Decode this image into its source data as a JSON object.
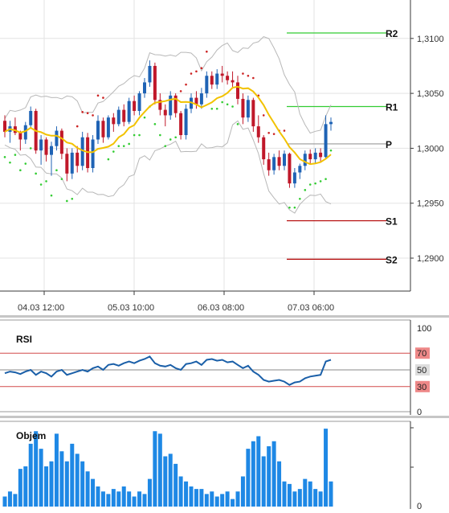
{
  "chart_data": [
    {
      "type": "candlestick",
      "pane": "price",
      "x_labels": [
        "04.03 12:00",
        "05.03 10:00",
        "06.03 08:00",
        "07.03 06:00"
      ],
      "y_ticks": [
        "1,3100",
        "1,3050",
        "1,3000",
        "1,2950",
        "1,2900"
      ],
      "ylim": [
        1.287,
        1.3135
      ],
      "pivot_levels": [
        {
          "label": "R2",
          "value": 1.3105,
          "color": "#33cc33"
        },
        {
          "label": "R1",
          "value": 1.3038,
          "color": "#33cc33"
        },
        {
          "label": "P",
          "value": 1.3004,
          "color": "#999999"
        },
        {
          "label": "S1",
          "value": 1.2934,
          "color": "#b30000"
        },
        {
          "label": "S2",
          "value": 1.2899,
          "color": "#b30000"
        }
      ],
      "candles": [
        [
          1.3025,
          1.303,
          1.301,
          1.3015
        ],
        [
          1.3015,
          1.3025,
          1.3005,
          1.302
        ],
        [
          1.302,
          1.3028,
          1.3012,
          1.3014
        ],
        [
          1.3014,
          1.3016,
          1.2998,
          1.3008
        ],
        [
          1.3008,
          1.3024,
          1.3004,
          1.3021
        ],
        [
          1.3021,
          1.3038,
          1.3018,
          1.3034
        ],
        [
          1.3034,
          1.3036,
          1.2995,
          1.2998
        ],
        [
          1.2998,
          1.3012,
          1.2985,
          1.3008
        ],
        [
          1.3008,
          1.301,
          1.2988,
          1.2994
        ],
        [
          1.2994,
          1.3006,
          1.2975,
          1.3002
        ],
        [
          1.3002,
          1.302,
          1.2998,
          1.3016
        ],
        [
          1.3016,
          1.3018,
          1.299,
          1.2995
        ],
        [
          1.2995,
          1.3,
          1.297,
          1.2977
        ],
        [
          1.2977,
          1.3,
          1.2972,
          1.2996
        ],
        [
          1.2996,
          1.3002,
          1.2978,
          1.2984
        ],
        [
          1.2984,
          1.3015,
          1.298,
          1.301
        ],
        [
          1.301,
          1.3014,
          1.2978,
          1.2982
        ],
        [
          1.2982,
          1.3012,
          1.2978,
          1.3008
        ],
        [
          1.3008,
          1.303,
          1.3004,
          1.3025
        ],
        [
          1.3025,
          1.3028,
          1.3005,
          1.301
        ],
        [
          1.301,
          1.303,
          1.3008,
          1.3028
        ],
        [
          1.3028,
          1.3032,
          1.3015,
          1.3022
        ],
        [
          1.3022,
          1.3038,
          1.302,
          1.3035
        ],
        [
          1.3035,
          1.304,
          1.302,
          1.3024
        ],
        [
          1.3024,
          1.3046,
          1.3022,
          1.3043
        ],
        [
          1.3043,
          1.3048,
          1.303,
          1.3034
        ],
        [
          1.3034,
          1.3052,
          1.303,
          1.305
        ],
        [
          1.305,
          1.3064,
          1.3046,
          1.306
        ],
        [
          1.306,
          1.308,
          1.3056,
          1.3075
        ],
        [
          1.3075,
          1.3078,
          1.304,
          1.3044
        ],
        [
          1.3044,
          1.305,
          1.303,
          1.3035
        ],
        [
          1.3035,
          1.304,
          1.302,
          1.303
        ],
        [
          1.303,
          1.3052,
          1.3026,
          1.3048
        ],
        [
          1.3048,
          1.305,
          1.3028,
          1.3032
        ],
        [
          1.3032,
          1.3034,
          1.3008,
          1.3012
        ],
        [
          1.3012,
          1.304,
          1.3008,
          1.3036
        ],
        [
          1.3036,
          1.305,
          1.3032,
          1.3046
        ],
        [
          1.3046,
          1.3052,
          1.3036,
          1.304
        ],
        [
          1.304,
          1.3055,
          1.3036,
          1.305
        ],
        [
          1.305,
          1.307,
          1.3046,
          1.3066
        ],
        [
          1.3066,
          1.307,
          1.3054,
          1.3058
        ],
        [
          1.3058,
          1.3072,
          1.3054,
          1.3068
        ],
        [
          1.3068,
          1.3075,
          1.306,
          1.3066
        ],
        [
          1.3066,
          1.307,
          1.3058,
          1.3062
        ],
        [
          1.3062,
          1.307,
          1.3056,
          1.306
        ],
        [
          1.306,
          1.3066,
          1.304,
          1.3045
        ],
        [
          1.3045,
          1.305,
          1.3022,
          1.3028
        ],
        [
          1.3028,
          1.3048,
          1.3024,
          1.3044
        ],
        [
          1.3044,
          1.3046,
          1.3015,
          1.302
        ],
        [
          1.302,
          1.303,
          1.3005,
          1.301
        ],
        [
          1.301,
          1.3012,
          1.2985,
          1.299
        ],
        [
          1.299,
          1.2996,
          1.2975,
          1.298
        ],
        [
          1.298,
          1.2995,
          1.2976,
          1.2992
        ],
        [
          1.2992,
          1.2998,
          1.298,
          1.2984
        ],
        [
          1.2984,
          1.2998,
          1.298,
          1.2995
        ],
        [
          1.2995,
          1.2996,
          1.2964,
          1.2968
        ],
        [
          1.2968,
          1.2982,
          1.2964,
          1.2978
        ],
        [
          1.2978,
          1.2986,
          1.2972,
          1.2984
        ],
        [
          1.2984,
          1.2998,
          1.298,
          1.2995
        ],
        [
          1.2995,
          1.2999,
          1.2985,
          1.299
        ],
        [
          1.299,
          1.3,
          1.2986,
          1.2996
        ],
        [
          1.2996,
          1.3,
          1.2988,
          1.2992
        ],
        [
          1.2992,
          1.303,
          1.299,
          1.3022
        ],
        [
          1.3022,
          1.3028,
          1.3016,
          1.3024
        ]
      ],
      "overlays": [
        {
          "kind": "moving-average",
          "color": "#f2c200"
        },
        {
          "kind": "bollinger-bands",
          "color": "#bbbbbb"
        },
        {
          "kind": "parabolic-sar",
          "colors": [
            "#33cc33",
            "#cc2222"
          ]
        }
      ]
    },
    {
      "type": "line",
      "pane": "indicator",
      "title": "RSI",
      "y_ticks": [
        "100",
        "70",
        "50",
        "30",
        "0"
      ],
      "ylim": [
        0,
        100
      ],
      "levels": [
        70,
        50,
        30
      ],
      "values": [
        46,
        48,
        47,
        45,
        48,
        50,
        44,
        48,
        46,
        42,
        48,
        50,
        44,
        46,
        48,
        50,
        48,
        52,
        54,
        50,
        56,
        57,
        55,
        58,
        60,
        58,
        61,
        63,
        66,
        58,
        55,
        54,
        56,
        52,
        50,
        57,
        58,
        60,
        56,
        62,
        63,
        61,
        62,
        59,
        60,
        56,
        52,
        55,
        48,
        44,
        38,
        36,
        37,
        38,
        36,
        32,
        35,
        36,
        40,
        42,
        43,
        44,
        60,
        62
      ],
      "color": "#1a5fa8"
    },
    {
      "type": "bar",
      "pane": "indicator",
      "title": "Objem",
      "values": [
        8,
        12,
        10,
        30,
        32,
        50,
        60,
        46,
        32,
        36,
        58,
        44,
        36,
        50,
        42,
        36,
        28,
        22,
        16,
        12,
        10,
        14,
        12,
        16,
        12,
        8,
        12,
        10,
        22,
        60,
        58,
        40,
        42,
        34,
        24,
        20,
        16,
        14,
        14,
        10,
        12,
        8,
        10,
        12,
        6,
        12,
        24,
        46,
        52,
        56,
        40,
        48,
        52,
        36,
        20,
        18,
        12,
        14,
        22,
        20,
        14,
        12,
        62,
        20
      ],
      "color": "#1e88e5"
    }
  ]
}
